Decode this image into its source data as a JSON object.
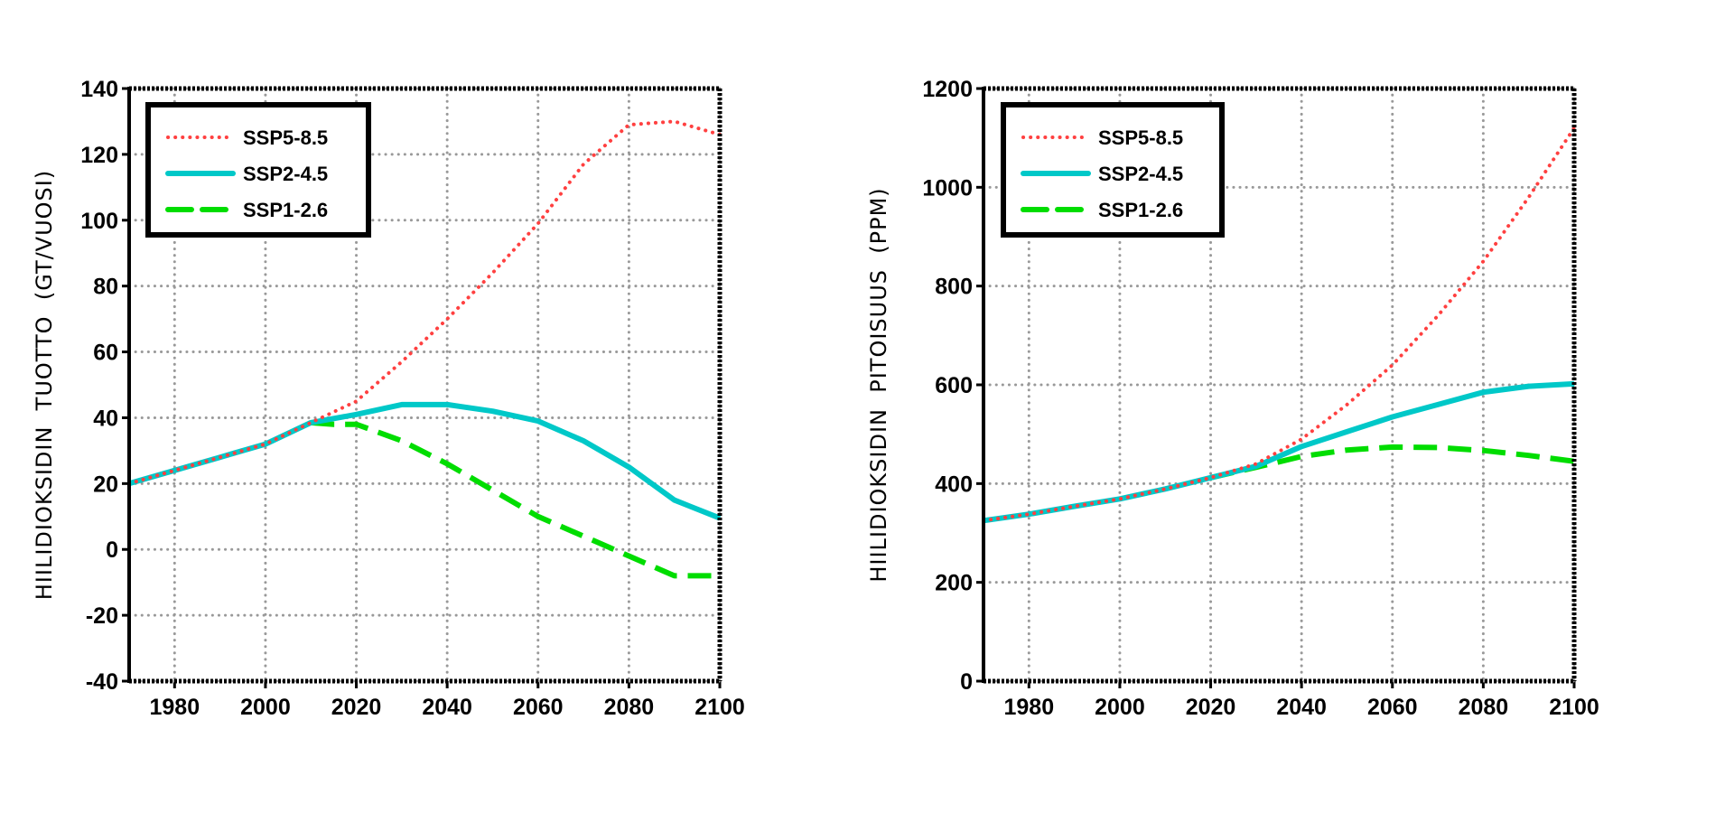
{
  "chart_data": [
    {
      "type": "line",
      "ylabel": "HIILIDIOKSIDIN  TUOTTO  (GT/VUOSI)",
      "xlabel": "",
      "xlim": [
        1970,
        2100
      ],
      "ylim": [
        -40,
        140
      ],
      "xticks": [
        1980,
        2000,
        2020,
        2040,
        2060,
        2080,
        2100
      ],
      "yticks": [
        -40,
        -20,
        0,
        20,
        40,
        60,
        80,
        100,
        120,
        140
      ],
      "grid": true,
      "legend_position": "top-left",
      "series": [
        {
          "name": "SSP5-8.5",
          "color": "#ff4040",
          "style": "dotted",
          "x": [
            1970,
            1980,
            1990,
            2000,
            2010,
            2020,
            2030,
            2040,
            2050,
            2060,
            2070,
            2080,
            2090,
            2100
          ],
          "y": [
            20,
            24,
            28,
            32,
            38.5,
            45,
            57,
            70,
            84,
            99,
            117,
            129,
            130,
            126
          ]
        },
        {
          "name": "SSP2-4.5",
          "color": "#00c8c8",
          "style": "solid",
          "x": [
            1970,
            1980,
            1990,
            2000,
            2010,
            2020,
            2030,
            2040,
            2050,
            2060,
            2070,
            2080,
            2090,
            2100
          ],
          "y": [
            20,
            24,
            28,
            32,
            38.5,
            41,
            44,
            44,
            42,
            39,
            33,
            25,
            15,
            9.5
          ]
        },
        {
          "name": "SSP1-2.6",
          "color": "#00dd00",
          "style": "dashed",
          "x": [
            2010,
            2015,
            2020,
            2030,
            2040,
            2050,
            2060,
            2070,
            2080,
            2090,
            2100
          ],
          "y": [
            38.5,
            38,
            38,
            33,
            26,
            18,
            10,
            4,
            -2,
            -8,
            -8
          ]
        }
      ]
    },
    {
      "type": "line",
      "ylabel": "HIILIDIOKSIDIN  PITOISUUS  (PPM)",
      "xlabel": "",
      "xlim": [
        1970,
        2100
      ],
      "ylim": [
        0,
        1200
      ],
      "xticks": [
        1980,
        2000,
        2020,
        2040,
        2060,
        2080,
        2100
      ],
      "yticks": [
        0,
        200,
        400,
        600,
        800,
        1000,
        1200
      ],
      "grid": true,
      "legend_position": "top-left",
      "series": [
        {
          "name": "SSP5-8.5",
          "color": "#ff4040",
          "style": "dotted",
          "x": [
            1970,
            1980,
            1990,
            2000,
            2010,
            2020,
            2030,
            2040,
            2050,
            2060,
            2070,
            2080,
            2090,
            2100
          ],
          "y": [
            325,
            338,
            354,
            369,
            389,
            412,
            440,
            490,
            560,
            640,
            740,
            850,
            980,
            1120
          ]
        },
        {
          "name": "SSP2-4.5",
          "color": "#00c8c8",
          "style": "solid",
          "x": [
            1970,
            1980,
            1990,
            2000,
            2010,
            2020,
            2030,
            2040,
            2050,
            2060,
            2070,
            2080,
            2090,
            2100
          ],
          "y": [
            325,
            338,
            354,
            369,
            389,
            412,
            435,
            475,
            505,
            535,
            560,
            585,
            597,
            602
          ]
        },
        {
          "name": "SSP1-2.6",
          "color": "#00dd00",
          "style": "dashed",
          "x": [
            2020,
            2030,
            2040,
            2050,
            2060,
            2070,
            2080,
            2090,
            2100
          ],
          "y": [
            412,
            433,
            455,
            468,
            474,
            473,
            467,
            457,
            445
          ]
        }
      ]
    }
  ]
}
